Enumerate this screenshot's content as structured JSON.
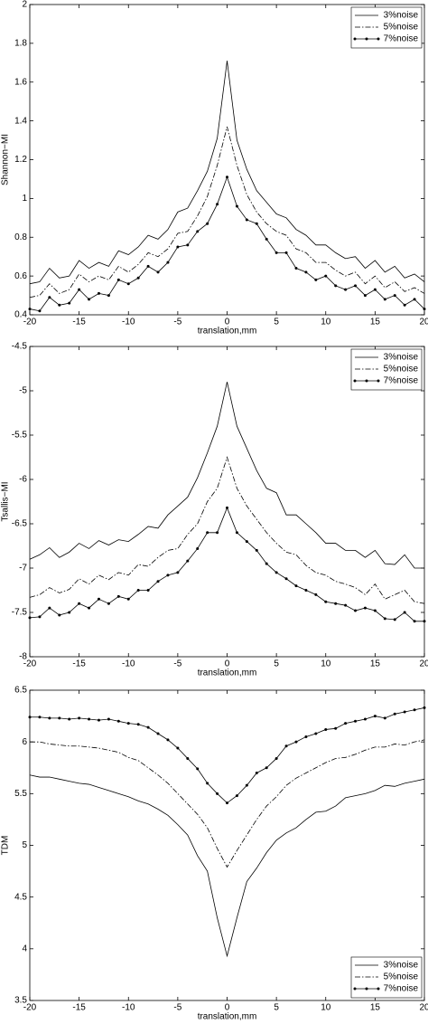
{
  "chart_data": [
    {
      "type": "line",
      "xlabel": "translation,mm",
      "ylabel": "Shannon−MI",
      "legend": "upper right",
      "x": [
        -20,
        -19,
        -18,
        -17,
        -16,
        -15,
        -14,
        -13,
        -12,
        -11,
        -10,
        -9,
        -8,
        -7,
        -6,
        -5,
        -4,
        -3,
        -2,
        -1,
        0,
        1,
        2,
        3,
        4,
        5,
        6,
        7,
        8,
        9,
        10,
        11,
        12,
        13,
        14,
        15,
        16,
        17,
        18,
        19,
        20
      ],
      "xlim": [
        -20,
        20
      ],
      "xticks": [
        -20,
        -15,
        -10,
        -5,
        0,
        5,
        10,
        15,
        20
      ],
      "ylim": [
        0.4,
        2
      ],
      "yticks": [
        0.4,
        0.6,
        0.8,
        1,
        1.2,
        1.4,
        1.6,
        1.8,
        2
      ],
      "series": [
        {
          "name": "3%noise",
          "color": "#000000",
          "dash": "solid",
          "marker": "none",
          "values": [
            0.56,
            0.57,
            0.64,
            0.59,
            0.6,
            0.68,
            0.64,
            0.67,
            0.65,
            0.73,
            0.71,
            0.75,
            0.81,
            0.79,
            0.84,
            0.93,
            0.95,
            1.04,
            1.14,
            1.31,
            1.71,
            1.3,
            1.15,
            1.04,
            0.98,
            0.92,
            0.9,
            0.84,
            0.81,
            0.76,
            0.76,
            0.72,
            0.69,
            0.7,
            0.64,
            0.68,
            0.62,
            0.65,
            0.59,
            0.61,
            0.57
          ]
        },
        {
          "name": "5%noise",
          "color": "#000000",
          "dash": "dashdot",
          "marker": "none",
          "values": [
            0.49,
            0.5,
            0.56,
            0.51,
            0.53,
            0.61,
            0.57,
            0.6,
            0.58,
            0.65,
            0.62,
            0.66,
            0.72,
            0.7,
            0.74,
            0.82,
            0.83,
            0.91,
            1.01,
            1.17,
            1.37,
            1.17,
            1.02,
            0.93,
            0.87,
            0.83,
            0.81,
            0.74,
            0.72,
            0.67,
            0.67,
            0.63,
            0.6,
            0.62,
            0.56,
            0.6,
            0.54,
            0.57,
            0.52,
            0.54,
            0.51
          ]
        },
        {
          "name": "7%noise",
          "color": "#000000",
          "dash": "solid",
          "marker": "dot",
          "values": [
            0.43,
            0.42,
            0.49,
            0.45,
            0.46,
            0.53,
            0.48,
            0.51,
            0.5,
            0.58,
            0.56,
            0.59,
            0.65,
            0.62,
            0.67,
            0.75,
            0.76,
            0.83,
            0.87,
            0.97,
            1.11,
            0.96,
            0.89,
            0.87,
            0.79,
            0.72,
            0.72,
            0.64,
            0.62,
            0.58,
            0.6,
            0.55,
            0.53,
            0.55,
            0.5,
            0.53,
            0.48,
            0.5,
            0.45,
            0.48,
            0.43
          ]
        }
      ]
    },
    {
      "type": "line",
      "xlabel": "translation,mm",
      "ylabel": "Tsallis−MI",
      "legend": "upper right",
      "x": [
        -20,
        -19,
        -18,
        -17,
        -16,
        -15,
        -14,
        -13,
        -12,
        -11,
        -10,
        -9,
        -8,
        -7,
        -6,
        -5,
        -4,
        -3,
        -2,
        -1,
        0,
        1,
        2,
        3,
        4,
        5,
        6,
        7,
        8,
        9,
        10,
        11,
        12,
        13,
        14,
        15,
        16,
        17,
        18,
        19,
        20
      ],
      "xlim": [
        -20,
        20
      ],
      "xticks": [
        -20,
        -15,
        -10,
        -5,
        0,
        5,
        10,
        15,
        20
      ],
      "ylim": [
        -8,
        -4.5
      ],
      "yticks": [
        -8,
        -7.5,
        -7,
        -6.5,
        -6,
        -5.5,
        -5,
        -4.5
      ],
      "series": [
        {
          "name": "3%noise",
          "color": "#000000",
          "dash": "solid",
          "marker": "none",
          "values": [
            -6.9,
            -6.85,
            -6.77,
            -6.88,
            -6.82,
            -6.72,
            -6.78,
            -6.69,
            -6.74,
            -6.68,
            -6.7,
            -6.62,
            -6.53,
            -6.55,
            -6.4,
            -6.3,
            -6.2,
            -5.98,
            -5.7,
            -5.4,
            -4.9,
            -5.4,
            -5.65,
            -5.9,
            -6.1,
            -6.15,
            -6.4,
            -6.4,
            -6.5,
            -6.6,
            -6.72,
            -6.72,
            -6.8,
            -6.8,
            -6.88,
            -6.8,
            -6.95,
            -6.96,
            -6.85,
            -7,
            -7
          ]
        },
        {
          "name": "5%noise",
          "color": "#000000",
          "dash": "dashdot",
          "marker": "none",
          "values": [
            -7.33,
            -7.3,
            -7.22,
            -7.28,
            -7.24,
            -7.12,
            -7.18,
            -7.08,
            -7.13,
            -7.05,
            -7.08,
            -6.96,
            -6.98,
            -6.88,
            -6.8,
            -6.78,
            -6.62,
            -6.5,
            -6.25,
            -6.1,
            -5.75,
            -6.1,
            -6.3,
            -6.45,
            -6.6,
            -6.72,
            -6.82,
            -6.85,
            -6.97,
            -7.05,
            -7.08,
            -7.15,
            -7.18,
            -7.22,
            -7.3,
            -7.18,
            -7.35,
            -7.3,
            -7.25,
            -7.38,
            -7.4
          ]
        },
        {
          "name": "7%noise",
          "color": "#000000",
          "dash": "solid",
          "marker": "dot",
          "values": [
            -7.56,
            -7.55,
            -7.45,
            -7.53,
            -7.5,
            -7.4,
            -7.45,
            -7.35,
            -7.4,
            -7.32,
            -7.35,
            -7.25,
            -7.25,
            -7.15,
            -7.08,
            -7.05,
            -6.92,
            -6.78,
            -6.6,
            -6.6,
            -6.32,
            -6.6,
            -6.7,
            -6.8,
            -6.95,
            -7.05,
            -7.12,
            -7.2,
            -7.25,
            -7.3,
            -7.38,
            -7.4,
            -7.42,
            -7.48,
            -7.45,
            -7.48,
            -7.57,
            -7.58,
            -7.5,
            -7.6,
            -7.6
          ]
        }
      ]
    },
    {
      "type": "line",
      "xlabel": "translation,mm",
      "ylabel": "TDM",
      "legend": "lower right",
      "x": [
        -20,
        -19,
        -18,
        -17,
        -16,
        -15,
        -14,
        -13,
        -12,
        -11,
        -10,
        -9,
        -8,
        -7,
        -6,
        -5,
        -4,
        -3,
        -2,
        -1,
        0,
        1,
        2,
        3,
        4,
        5,
        6,
        7,
        8,
        9,
        10,
        11,
        12,
        13,
        14,
        15,
        16,
        17,
        18,
        19,
        20
      ],
      "xlim": [
        -20,
        20
      ],
      "xticks": [
        -20,
        -15,
        -10,
        -5,
        0,
        5,
        10,
        15,
        20
      ],
      "ylim": [
        3.5,
        6.5
      ],
      "yticks": [
        3.5,
        4,
        4.5,
        5,
        5.5,
        6,
        6.5
      ],
      "series": [
        {
          "name": "3%noise",
          "color": "#000000",
          "dash": "solid",
          "marker": "none",
          "values": [
            5.68,
            5.66,
            5.66,
            5.64,
            5.62,
            5.6,
            5.59,
            5.56,
            5.53,
            5.5,
            5.47,
            5.43,
            5.4,
            5.35,
            5.29,
            5.2,
            5.1,
            4.9,
            4.75,
            4.3,
            3.93,
            4.3,
            4.65,
            4.78,
            4.93,
            5.05,
            5.12,
            5.17,
            5.25,
            5.32,
            5.33,
            5.38,
            5.46,
            5.48,
            5.5,
            5.53,
            5.58,
            5.57,
            5.6,
            5.62,
            5.64
          ]
        },
        {
          "name": "5%noise",
          "color": "#000000",
          "dash": "dashdot",
          "marker": "none",
          "values": [
            6,
            6,
            5.98,
            5.97,
            5.96,
            5.96,
            5.95,
            5.94,
            5.92,
            5.9,
            5.85,
            5.82,
            5.75,
            5.68,
            5.6,
            5.5,
            5.4,
            5.3,
            5.17,
            4.97,
            4.79,
            4.95,
            5.1,
            5.25,
            5.38,
            5.47,
            5.58,
            5.65,
            5.7,
            5.75,
            5.8,
            5.84,
            5.85,
            5.88,
            5.92,
            5.95,
            5.95,
            5.98,
            5.97,
            6,
            6.02
          ]
        },
        {
          "name": "7%noise",
          "color": "#000000",
          "dash": "solid",
          "marker": "dot",
          "values": [
            6.24,
            6.24,
            6.23,
            6.23,
            6.22,
            6.23,
            6.22,
            6.21,
            6.22,
            6.2,
            6.18,
            6.17,
            6.14,
            6.08,
            6.02,
            5.94,
            5.84,
            5.74,
            5.6,
            5.5,
            5.41,
            5.48,
            5.58,
            5.7,
            5.75,
            5.84,
            5.96,
            6,
            6.05,
            6.08,
            6.12,
            6.13,
            6.18,
            6.2,
            6.22,
            6.25,
            6.23,
            6.27,
            6.29,
            6.31,
            6.33
          ]
        }
      ]
    }
  ]
}
